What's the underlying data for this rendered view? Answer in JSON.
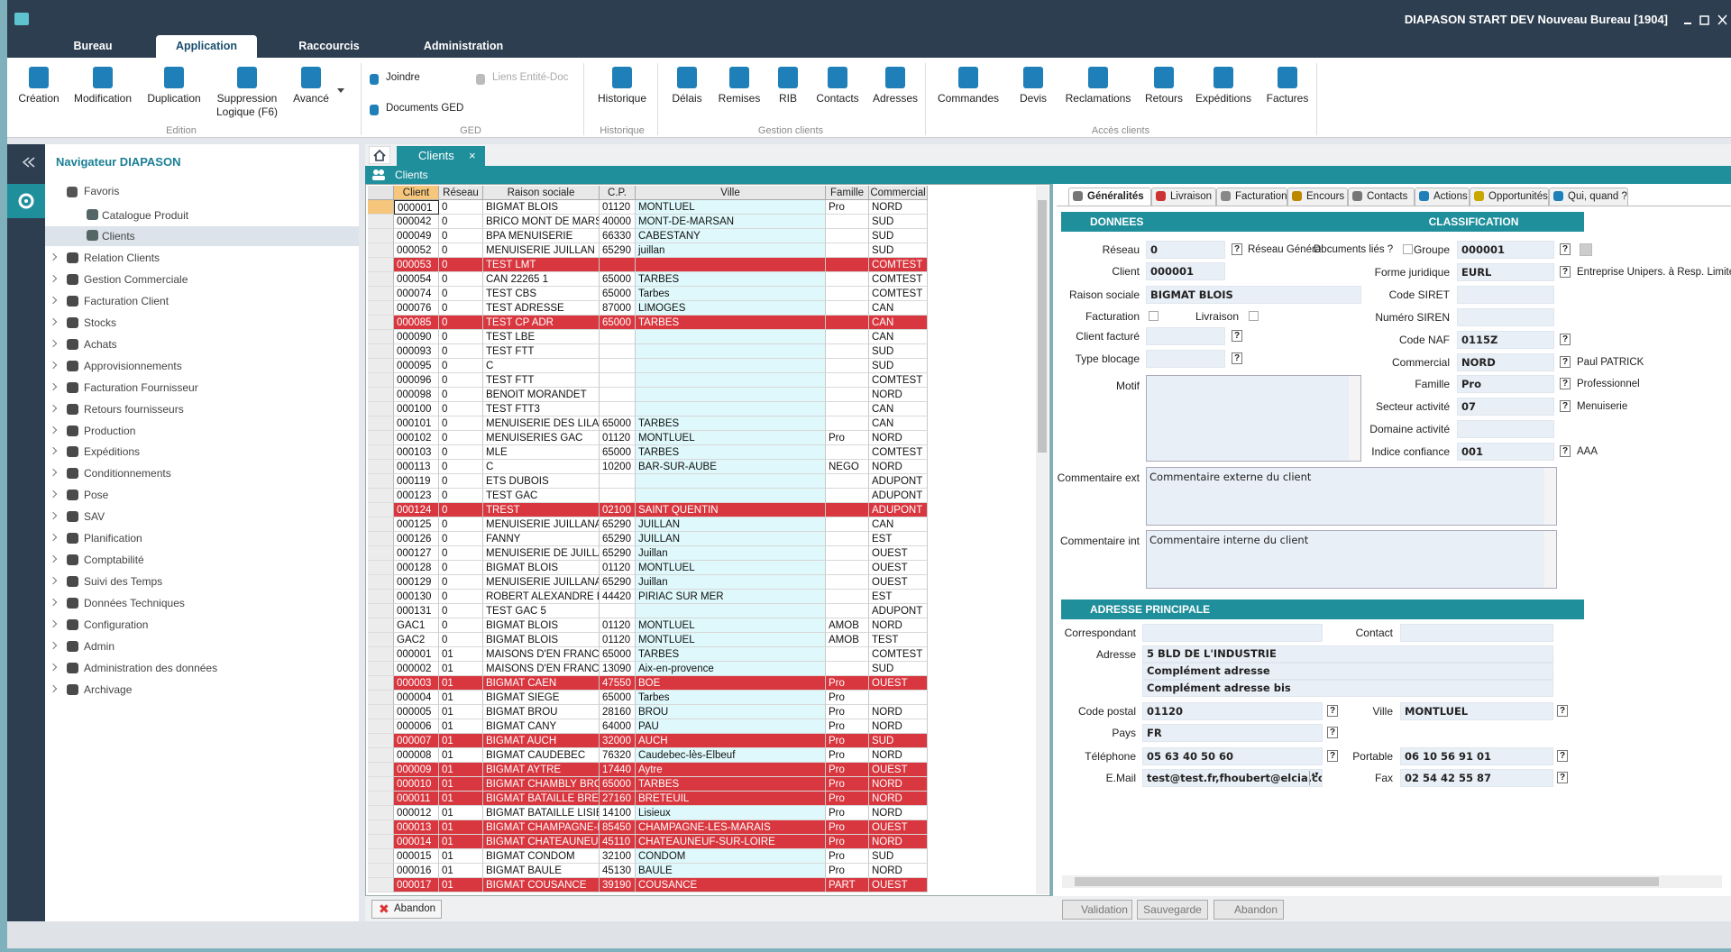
{
  "window_title": "DIAPASON START DEV Nouveau Bureau [1904]",
  "menu_tabs": [
    "Bureau",
    "Application",
    "Raccourcis",
    "Administration"
  ],
  "ribbon": {
    "groups": [
      {
        "label": "Edition",
        "buttons": [
          "Création",
          "Modification",
          "Duplication",
          "Suppression Logique (F6)",
          "Avancé"
        ]
      },
      {
        "label": "GED",
        "buttons": [
          "Joindre",
          "Documents GED",
          "Liens Entité-Doc"
        ]
      },
      {
        "label": "Historique",
        "buttons": [
          "Historique"
        ]
      },
      {
        "label": "Gestion clients",
        "buttons": [
          "Délais",
          "Remises",
          "RIB",
          "Contacts",
          "Adresses"
        ]
      },
      {
        "label": "Accès clients",
        "buttons": [
          "Commandes",
          "Devis",
          "Reclamations",
          "Retours",
          "Expéditions",
          "Factures"
        ]
      }
    ]
  },
  "navigator": {
    "title": "Navigateur DIAPASON",
    "favorites": {
      "label": "Favoris",
      "items": [
        "Catalogue Produit",
        "Clients"
      ]
    },
    "modules": [
      "Relation Clients",
      "Gestion Commerciale",
      "Facturation Client",
      "Stocks",
      "Achats",
      "Approvisionnements",
      "Facturation Fournisseur",
      "Retours fournisseurs",
      "Production",
      "Expéditions",
      "Conditionnements",
      "Pose",
      "SAV",
      "Planification",
      "Comptabilité",
      "Suivi des Temps",
      "Données Techniques",
      "Configuration",
      "Admin",
      "Administration des données",
      "Archivage"
    ]
  },
  "document_tab": "Clients",
  "grid": {
    "title": "Clients",
    "columns": [
      "Client",
      "Réseau",
      "Raison sociale",
      "C.P.",
      "Ville",
      "Famille",
      "Commercial"
    ],
    "rows": [
      {
        "cells": [
          "000001",
          "0",
          "BIGMAT BLOIS",
          "01120",
          "MONTLUEL",
          "Pro",
          "NORD"
        ],
        "alert": false
      },
      {
        "cells": [
          "000042",
          "0",
          "BRICO MONT DE MARSA",
          "40000",
          "MONT-DE-MARSAN",
          null,
          "SUD"
        ],
        "alert": false
      },
      {
        "cells": [
          "000049",
          "0",
          "BPA MENUISERIE",
          "66330",
          "CABESTANY",
          null,
          "SUD"
        ],
        "alert": false
      },
      {
        "cells": [
          "000052",
          "0",
          "MENUISERIE JUILLAN",
          "65290",
          "juillan",
          null,
          "SUD"
        ],
        "alert": false
      },
      {
        "cells": [
          "000053",
          "0",
          "TEST LMT",
          null,
          null,
          null,
          "COMTEST"
        ],
        "alert": true
      },
      {
        "cells": [
          "000054",
          "0",
          "CAN 22265 1",
          "65000",
          "TARBES",
          null,
          "COMTEST"
        ],
        "alert": false
      },
      {
        "cells": [
          "000074",
          "0",
          "TEST CBS",
          "65000",
          "Tarbes",
          null,
          "COMTEST"
        ],
        "alert": false
      },
      {
        "cells": [
          "000076",
          "0",
          "TEST ADRESSE",
          "87000",
          "LIMOGES",
          null,
          "CAN"
        ],
        "alert": false
      },
      {
        "cells": [
          "000085",
          "0",
          "TEST CP ADR",
          "65000",
          "TARBES",
          null,
          "CAN"
        ],
        "alert": true
      },
      {
        "cells": [
          "000090",
          "0",
          "TEST LBE",
          null,
          null,
          null,
          "CAN"
        ],
        "alert": false
      },
      {
        "cells": [
          "000093",
          "0",
          "TEST FTT",
          null,
          null,
          null,
          "SUD"
        ],
        "alert": false
      },
      {
        "cells": [
          "000095",
          "0",
          "C",
          null,
          null,
          null,
          "SUD"
        ],
        "alert": false
      },
      {
        "cells": [
          "000096",
          "0",
          "TEST FTT",
          null,
          null,
          null,
          "COMTEST"
        ],
        "alert": false
      },
      {
        "cells": [
          "000098",
          "0",
          "BENOIT MORANDET",
          null,
          null,
          null,
          "NORD"
        ],
        "alert": false
      },
      {
        "cells": [
          "000100",
          "0",
          "TEST FTT3",
          null,
          null,
          null,
          "CAN"
        ],
        "alert": false
      },
      {
        "cells": [
          "000101",
          "0",
          "MENUISERIE DES LILAS",
          "65000",
          "TARBES",
          null,
          "CAN"
        ],
        "alert": false
      },
      {
        "cells": [
          "000102",
          "0",
          "MENUISERIES GAC",
          "01120",
          "MONTLUEL",
          "Pro",
          "NORD"
        ],
        "alert": false
      },
      {
        "cells": [
          "000103",
          "0",
          "MLE",
          "65000",
          "TARBES",
          null,
          "COMTEST"
        ],
        "alert": false
      },
      {
        "cells": [
          "000113",
          "0",
          "C",
          "10200",
          "BAR-SUR-AUBE",
          "NEGO",
          "NORD"
        ],
        "alert": false
      },
      {
        "cells": [
          "000119",
          "0",
          "ETS DUBOIS",
          null,
          null,
          null,
          "ADUPONT"
        ],
        "alert": false
      },
      {
        "cells": [
          "000123",
          "0",
          "TEST GAC",
          null,
          null,
          null,
          "ADUPONT"
        ],
        "alert": false
      },
      {
        "cells": [
          "000124",
          "0",
          "TREST",
          "02100",
          "SAINT QUENTIN",
          null,
          "ADUPONT"
        ],
        "alert": true
      },
      {
        "cells": [
          "000125",
          "0",
          "MENUISERIE JUILLANAIS",
          "65290",
          "JUILLAN",
          null,
          "CAN"
        ],
        "alert": false
      },
      {
        "cells": [
          "000126",
          "0",
          "FANNY",
          "65290",
          "JUILLAN",
          null,
          "EST"
        ],
        "alert": false
      },
      {
        "cells": [
          "000127",
          "0",
          "MENUISERIE DE JUILLA",
          "65290",
          "Juillan",
          null,
          "OUEST"
        ],
        "alert": false
      },
      {
        "cells": [
          "000128",
          "0",
          "BIGMAT BLOIS",
          "01120",
          "MONTLUEL",
          null,
          "OUEST"
        ],
        "alert": false
      },
      {
        "cells": [
          "000129",
          "0",
          "MENUISERIE JUILLANAIS",
          "65290",
          "Juillan",
          null,
          "OUEST"
        ],
        "alert": false
      },
      {
        "cells": [
          "000130",
          "0",
          "ROBERT ALEXANDRE EN",
          "44420",
          "PIRIAC SUR MER",
          null,
          "EST"
        ],
        "alert": false
      },
      {
        "cells": [
          "000131",
          "0",
          "TEST GAC 5",
          null,
          null,
          null,
          "ADUPONT"
        ],
        "alert": false
      },
      {
        "cells": [
          "GAC1",
          "0",
          "BIGMAT BLOIS",
          "01120",
          "MONTLUEL",
          "AMOB",
          "NORD"
        ],
        "alert": false
      },
      {
        "cells": [
          "GAC2",
          "0",
          "BIGMAT BLOIS",
          "01120",
          "MONTLUEL",
          "AMOB",
          "TEST"
        ],
        "alert": false
      },
      {
        "cells": [
          "000001",
          "01",
          "MAISONS D'EN FRANCE",
          "65000",
          "TARBES",
          null,
          "COMTEST"
        ],
        "alert": false
      },
      {
        "cells": [
          "000002",
          "01",
          "MAISONS D'EN FRANCE",
          "13090",
          "Aix-en-provence",
          null,
          "SUD"
        ],
        "alert": false
      },
      {
        "cells": [
          "000003",
          "01",
          "BIGMAT CAEN",
          "47550",
          "BOE",
          "Pro",
          "OUEST"
        ],
        "alert": true
      },
      {
        "cells": [
          "000004",
          "01",
          "BIGMAT SIEGE",
          "65000",
          "Tarbes",
          "Pro",
          null
        ],
        "alert": false
      },
      {
        "cells": [
          "000005",
          "01",
          "BIGMAT BROU",
          "28160",
          "BROU",
          "Pro",
          "NORD"
        ],
        "alert": false
      },
      {
        "cells": [
          "000006",
          "01",
          "BIGMAT CANY",
          "64000",
          "PAU",
          "Pro",
          "NORD"
        ],
        "alert": false
      },
      {
        "cells": [
          "000007",
          "01",
          "BIGMAT AUCH",
          "32000",
          "AUCH",
          "Pro",
          "SUD"
        ],
        "alert": true
      },
      {
        "cells": [
          "000008",
          "01",
          "BIGMAT CAUDEBEC",
          "76320",
          "Caudebec-lès-Elbeuf",
          "Pro",
          "NORD"
        ],
        "alert": false
      },
      {
        "cells": [
          "000009",
          "01",
          "BIGMAT AYTRE",
          "17440",
          "Aytre",
          "Pro",
          "OUEST"
        ],
        "alert": true
      },
      {
        "cells": [
          "000010",
          "01",
          "BIGMAT CHAMBLY BROC",
          "65000",
          "TARBES",
          "Pro",
          "NORD"
        ],
        "alert": true
      },
      {
        "cells": [
          "000011",
          "01",
          "BIGMAT BATAILLE BRET",
          "27160",
          "BRETEUIL",
          "Pro",
          "NORD"
        ],
        "alert": true
      },
      {
        "cells": [
          "000012",
          "01",
          "BIGMAT BATAILLE LISIEU",
          "14100",
          "Lisieux",
          "Pro",
          "NORD"
        ],
        "alert": false
      },
      {
        "cells": [
          "000013",
          "01",
          "BIGMAT CHAMPAGNE-LE",
          "85450",
          "CHAMPAGNE-LES-MARAIS",
          "Pro",
          "OUEST"
        ],
        "alert": true
      },
      {
        "cells": [
          "000014",
          "01",
          "BIGMAT CHATEAUNEUF",
          "45110",
          "CHATEAUNEUF-SUR-LOIRE",
          "Pro",
          "NORD"
        ],
        "alert": true
      },
      {
        "cells": [
          "000015",
          "01",
          "BIGMAT CONDOM",
          "32100",
          "CONDOM",
          "Pro",
          "SUD"
        ],
        "alert": false
      },
      {
        "cells": [
          "000016",
          "01",
          "BIGMAT BAULE",
          "45130",
          "BAULE",
          "Pro",
          "NORD"
        ],
        "alert": false
      },
      {
        "cells": [
          "000017",
          "01",
          "BIGMAT COUSANCE",
          "39190",
          "COUSANCE",
          "PART",
          "OUEST"
        ],
        "alert": true
      }
    ]
  },
  "grid_footer_button": "Abandon",
  "form": {
    "tabs": [
      "Généralités",
      "Livraison",
      "Facturation",
      "Encours",
      "Contacts",
      "Actions",
      "Opportunités",
      "Qui, quand ?"
    ],
    "sections": [
      "DONNEES",
      "CLASSIFICATION",
      "ADRESSE PRINCIPALE"
    ],
    "donnees": [
      {
        "label": "Réseau",
        "value": "0"
      },
      {
        "label": "Client",
        "value": "000001"
      },
      {
        "label": "Raison sociale",
        "value": "BIGMAT BLOIS"
      },
      {
        "label": "Client facturé",
        "value": null
      },
      {
        "label": "Type blocage",
        "value": null
      },
      {
        "label": "Motif",
        "value": null
      },
      {
        "label": "Commentaire ext",
        "value": "Commentaire externe du client"
      },
      {
        "label": "Commentaire int",
        "value": "Commentaire interne du client"
      }
    ],
    "checkboxes": [
      "Réseau Général",
      "Documents liés ?",
      "Facturation",
      "Livraison"
    ],
    "classification": [
      {
        "label": "Groupe",
        "value": "000001",
        "description": null
      },
      {
        "label": "Forme juridique",
        "value": "EURL",
        "description": "Entreprise Unipers. à Resp. Limitée"
      },
      {
        "label": "Code SIRET",
        "value": null,
        "description": null
      },
      {
        "label": "Numéro SIREN",
        "value": null,
        "description": null
      },
      {
        "label": "Code NAF",
        "value": "0115Z",
        "description": null
      },
      {
        "label": "Commercial",
        "value": "NORD",
        "description": "Paul PATRICK"
      },
      {
        "label": "Famille",
        "value": "Pro",
        "description": "Professionnel"
      },
      {
        "label": "Secteur activité",
        "value": "07",
        "description": "Menuiserie"
      },
      {
        "label": "Domaine activité",
        "value": null,
        "description": null
      },
      {
        "label": "Indice confiance",
        "value": "001",
        "description": "AAA"
      }
    ],
    "adresse_left": [
      {
        "label": "Correspondant",
        "value": null
      },
      {
        "label": "Code postal",
        "value": "01120"
      },
      {
        "label": "Pays",
        "value": "FR"
      },
      {
        "label": "Téléphone",
        "value": "05 63 40 50 60"
      },
      {
        "label": "E.Mail",
        "value": "test@test.fr,fhoubert@elcia.co"
      }
    ],
    "adresse": {
      "label": "Adresse",
      "lines": [
        "5 BLD DE L'INDUSTRIE",
        "Complément adresse",
        "Complément adresse bis"
      ]
    },
    "adresse_right": [
      {
        "label": "Contact",
        "value": null
      },
      {
        "label": "Ville",
        "value": "MONTLUEL"
      },
      {
        "label": "Portable",
        "value": "06 10 56 91 01"
      },
      {
        "label": "Fax",
        "value": "02 54 42 55 87"
      }
    ]
  },
  "footer_buttons": [
    "Validation",
    "Sauvegarde",
    "Abandon"
  ]
}
